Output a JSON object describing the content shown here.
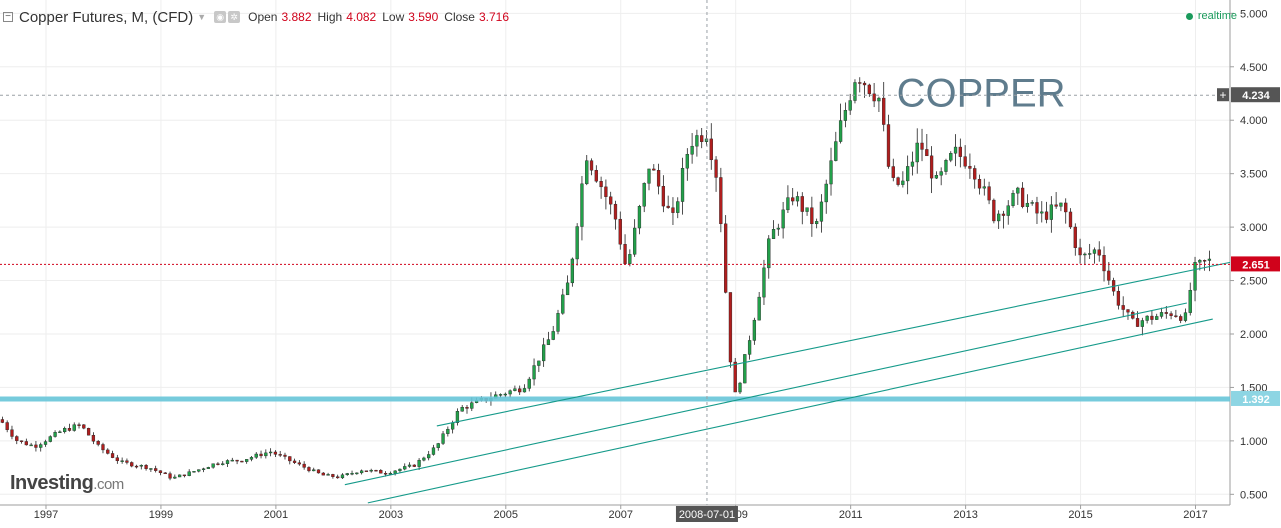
{
  "header": {
    "title": "Copper Futures, M, (CFD)",
    "open_label": "Open",
    "open_value": "3.882",
    "high_label": "High",
    "high_value": "4.082",
    "low_label": "Low",
    "low_value": "3.590",
    "close_label": "Close",
    "close_value": "3.716",
    "realtime_label": "realtime",
    "collapse_icon": "minus-square-icon",
    "settings_icon": "gear-icon"
  },
  "branding": {
    "logo_main": "Investing",
    "logo_suffix": ".com"
  },
  "annotation": {
    "text": "COPPER"
  },
  "crosshair": {
    "date_label": "2008-07-01",
    "price_label": "4.234",
    "price_value": 4.234,
    "date_value": 2008.5
  },
  "colors": {
    "up": "#22a04a",
    "down": "#b01e1e",
    "trendline": "#159a8a",
    "support": "#68c6d9",
    "current_price_line": "#d0021b",
    "crosshair": "#9aa0a6",
    "annotation": "#5f7c8d"
  },
  "chart_data": {
    "type": "candlestick",
    "timeframe": "monthly",
    "ylim": [
      0.4,
      5.05
    ],
    "xlim": [
      1996.2,
      2017.6
    ],
    "y_ticks": [
      "0.500",
      "1.000",
      "1.500",
      "2.000",
      "2.500",
      "3.000",
      "3.500",
      "4.000",
      "4.500",
      "5.000"
    ],
    "x_ticks": [
      "1997",
      "1999",
      "2001",
      "2003",
      "2005",
      "2007",
      "2009",
      "2011",
      "2013",
      "2015",
      "2017"
    ],
    "current_price": 2.651,
    "current_price_label": "2.651",
    "support_level": 1.392,
    "support_label": "1.392",
    "trendlines": [
      {
        "from": [
          2003.8,
          1.14
        ],
        "to": [
          2017.6,
          2.67
        ]
      },
      {
        "from": [
          2002.2,
          0.59
        ],
        "to": [
          2016.85,
          2.29
        ]
      },
      {
        "from": [
          2002.6,
          0.42
        ],
        "to": [
          2017.3,
          2.14
        ]
      }
    ],
    "price_path": [
      [
        1996.2,
        1.2
      ],
      [
        1996.5,
        1.0
      ],
      [
        1996.8,
        0.95
      ],
      [
        1997.3,
        1.1
      ],
      [
        1997.6,
        1.15
      ],
      [
        1997.9,
        0.95
      ],
      [
        1998.3,
        0.8
      ],
      [
        1998.8,
        0.75
      ],
      [
        1999.2,
        0.65
      ],
      [
        1999.6,
        0.72
      ],
      [
        2000.0,
        0.8
      ],
      [
        2000.4,
        0.82
      ],
      [
        2000.9,
        0.9
      ],
      [
        2001.3,
        0.8
      ],
      [
        2001.8,
        0.68
      ],
      [
        2002.1,
        0.66
      ],
      [
        2002.5,
        0.73
      ],
      [
        2002.9,
        0.7
      ],
      [
        2003.4,
        0.77
      ],
      [
        2003.8,
        0.95
      ],
      [
        2004.2,
        1.3
      ],
      [
        2004.8,
        1.42
      ],
      [
        2005.3,
        1.5
      ],
      [
        2005.8,
        2.0
      ],
      [
        2006.1,
        2.5
      ],
      [
        2006.4,
        3.7
      ],
      [
        2006.9,
        3.1
      ],
      [
        2007.1,
        2.6
      ],
      [
        2007.5,
        3.6
      ],
      [
        2007.9,
        3.05
      ],
      [
        2008.2,
        3.8
      ],
      [
        2008.5,
        3.9
      ],
      [
        2008.7,
        3.4
      ],
      [
        2008.9,
        1.8
      ],
      [
        2009.0,
        1.4
      ],
      [
        2009.3,
        2.1
      ],
      [
        2009.6,
        2.9
      ],
      [
        2010.0,
        3.3
      ],
      [
        2010.4,
        3.0
      ],
      [
        2010.8,
        3.9
      ],
      [
        2011.1,
        4.45
      ],
      [
        2011.5,
        4.2
      ],
      [
        2011.7,
        3.4
      ],
      [
        2011.9,
        3.4
      ],
      [
        2012.2,
        3.8
      ],
      [
        2012.5,
        3.4
      ],
      [
        2012.8,
        3.7
      ],
      [
        2013.1,
        3.6
      ],
      [
        2013.5,
        3.1
      ],
      [
        2013.9,
        3.3
      ],
      [
        2014.3,
        3.1
      ],
      [
        2014.7,
        3.2
      ],
      [
        2015.0,
        2.7
      ],
      [
        2015.3,
        2.8
      ],
      [
        2015.6,
        2.35
      ],
      [
        2015.9,
        2.1
      ],
      [
        2016.2,
        2.15
      ],
      [
        2016.6,
        2.2
      ],
      [
        2016.85,
        2.15
      ],
      [
        2016.95,
        2.6
      ],
      [
        2017.2,
        2.68
      ]
    ]
  }
}
